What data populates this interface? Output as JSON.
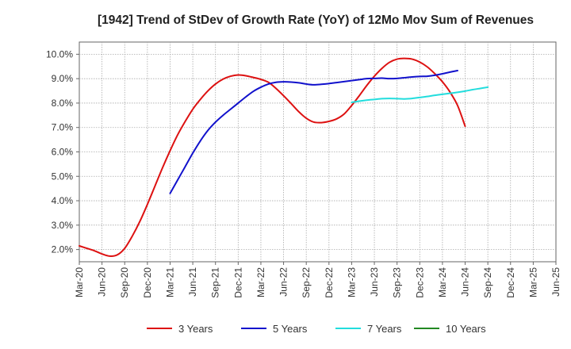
{
  "chart_data": {
    "type": "line",
    "title": "[1942]  Trend of StDev of Growth Rate (YoY) of 12Mo Mov Sum of Revenues",
    "xlabel": "",
    "ylabel": "",
    "ylim": [
      1.5,
      10.5
    ],
    "y_ticks": [
      2.0,
      3.0,
      4.0,
      5.0,
      6.0,
      7.0,
      8.0,
      9.0,
      10.0
    ],
    "y_tick_labels": [
      "2.0%",
      "3.0%",
      "4.0%",
      "5.0%",
      "6.0%",
      "7.0%",
      "8.0%",
      "9.0%",
      "10.0%"
    ],
    "x_tick_labels": [
      "Mar-20",
      "Jun-20",
      "Sep-20",
      "Dec-20",
      "Mar-21",
      "Jun-21",
      "Sep-21",
      "Dec-21",
      "Mar-22",
      "Jun-22",
      "Sep-22",
      "Dec-22",
      "Mar-23",
      "Jun-23",
      "Sep-23",
      "Dec-23",
      "Mar-24",
      "Jun-24",
      "Sep-24",
      "Dec-24",
      "Mar-25",
      "Jun-25"
    ],
    "grid": true,
    "legend_position": "bottom",
    "series": [
      {
        "name": "3 Years",
        "color": "#dd1111",
        "start_index": 0,
        "values": [
          2.15,
          2.05,
          1.95,
          1.82,
          1.73,
          1.78,
          2.05,
          2.55,
          3.15,
          3.85,
          4.6,
          5.35,
          6.05,
          6.7,
          7.25,
          7.75,
          8.15,
          8.5,
          8.78,
          8.98,
          9.1,
          9.15,
          9.12,
          9.05,
          8.97,
          8.85,
          8.6,
          8.3,
          7.98,
          7.65,
          7.38,
          7.22,
          7.2,
          7.25,
          7.35,
          7.55,
          7.9,
          8.3,
          8.72,
          9.1,
          9.42,
          9.67,
          9.8,
          9.83,
          9.8,
          9.68,
          9.48,
          9.2,
          8.87,
          8.45,
          7.9,
          7.05
        ]
      },
      {
        "name": "5 Years",
        "color": "#1111cc",
        "start_index": 12,
        "values": [
          4.3,
          4.85,
          5.4,
          5.95,
          6.45,
          6.88,
          7.22,
          7.5,
          7.75,
          8.0,
          8.25,
          8.48,
          8.65,
          8.78,
          8.85,
          8.87,
          8.86,
          8.83,
          8.78,
          8.75,
          8.77,
          8.8,
          8.84,
          8.88,
          8.92,
          8.96,
          9.0,
          9.01,
          9.02,
          9.0,
          9.01,
          9.04,
          9.07,
          9.09,
          9.1,
          9.14,
          9.2,
          9.27,
          9.33
        ]
      },
      {
        "name": "7 Years",
        "color": "#22dddd",
        "start_index": 36,
        "values": [
          8.03,
          8.08,
          8.12,
          8.15,
          8.18,
          8.19,
          8.18,
          8.17,
          8.19,
          8.23,
          8.27,
          8.32,
          8.36,
          8.4,
          8.44,
          8.49,
          8.55,
          8.6,
          8.65
        ]
      },
      {
        "name": "10 Years",
        "color": "#228822",
        "start_index": 0,
        "values": []
      }
    ]
  }
}
